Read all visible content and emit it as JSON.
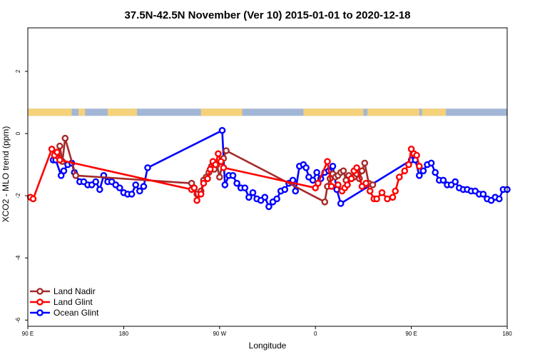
{
  "chart_data": {
    "type": "line",
    "title": "37.5N-42.5N November (Ver 10)   2015-01-01 to 2020-12-18",
    "xlabel": "Longitude",
    "ylabel": "XCO2 - MLO trend (ppm)",
    "xlim": [
      -90,
      270
    ],
    "ylim": [
      -6.2,
      3.4
    ],
    "x_ticks": [
      {
        "value": -90,
        "label": "90 E"
      },
      {
        "value": -18,
        "label": "180"
      },
      {
        "value": 54,
        "label": "90 W"
      },
      {
        "value": 126,
        "label": "0"
      },
      {
        "value": 198,
        "label": "90 E"
      },
      {
        "value": 270,
        "label": "180"
      }
    ],
    "y_ticks": [
      {
        "value": 2,
        "label": "2"
      },
      {
        "value": 0,
        "label": "0"
      },
      {
        "value": -2,
        "label": "-2"
      },
      {
        "value": -4,
        "label": "-4"
      },
      {
        "value": -6,
        "label": "-6"
      }
    ],
    "land_band": {
      "y_top": 0.8,
      "y_bottom": 0.57,
      "land_color": "#f5d27a",
      "ocean_color": "#a2b6d6"
    },
    "legend_position": "bottom-left",
    "series": [
      {
        "name": "Land Nadir",
        "color": "#a52a2a",
        "points": [
          [
            -68,
            -0.72
          ],
          [
            -66,
            -0.4
          ],
          [
            -64,
            -0.9
          ],
          [
            -62,
            -0.15
          ],
          [
            -54,
            -1.35
          ],
          [
            33,
            -1.6
          ],
          [
            35,
            -1.75
          ],
          [
            37,
            -1.95
          ],
          [
            40,
            -1.85
          ],
          [
            42,
            -1.5
          ],
          [
            44,
            -1.4
          ],
          [
            46,
            -1.25
          ],
          [
            48,
            -1.05
          ],
          [
            50,
            -1.15
          ],
          [
            52,
            -1.0
          ],
          [
            54,
            -1.4
          ],
          [
            57,
            -0.8
          ],
          [
            59,
            -0.55
          ],
          [
            133,
            -2.2
          ],
          [
            135,
            -1.7
          ],
          [
            137,
            -1.45
          ],
          [
            139,
            -1.3
          ],
          [
            141,
            -1.4
          ],
          [
            143,
            -1.35
          ],
          [
            145,
            -1.25
          ],
          [
            147,
            -1.2
          ],
          [
            149,
            -1.5
          ],
          [
            151,
            -1.35
          ],
          [
            153,
            -1.45
          ],
          [
            155,
            -1.4
          ],
          [
            157,
            -1.3
          ],
          [
            159,
            -1.45
          ],
          [
            161,
            -1.2
          ],
          [
            163,
            -0.95
          ],
          [
            166,
            -1.6
          ],
          [
            169,
            -1.65
          ]
        ],
        "marker": "circle"
      },
      {
        "name": "Land Glint",
        "color": "#ff0000",
        "points": [
          [
            -88,
            -2.05
          ],
          [
            -86,
            -2.1
          ],
          [
            -72,
            -0.5
          ],
          [
            -70,
            -0.7
          ],
          [
            -68,
            -0.6
          ],
          [
            -66,
            -0.85
          ],
          [
            33,
            -1.8
          ],
          [
            35,
            -1.75
          ],
          [
            37,
            -2.15
          ],
          [
            40,
            -1.95
          ],
          [
            42,
            -1.6
          ],
          [
            45,
            -1.45
          ],
          [
            47,
            -1.15
          ],
          [
            49,
            -0.9
          ],
          [
            51,
            -1.0
          ],
          [
            53,
            -0.65
          ],
          [
            55,
            -0.9
          ],
          [
            57,
            -1.1
          ],
          [
            126,
            -1.75
          ],
          [
            128,
            -1.6
          ],
          [
            135,
            -0.9
          ],
          [
            138,
            -1.7
          ],
          [
            143,
            -1.65
          ],
          [
            146,
            -1.85
          ],
          [
            148,
            -1.75
          ],
          [
            150,
            -1.65
          ],
          [
            153,
            -1.45
          ],
          [
            155,
            -1.2
          ],
          [
            157,
            -1.1
          ],
          [
            161,
            -1.7
          ],
          [
            164,
            -1.6
          ],
          [
            167,
            -1.85
          ],
          [
            170,
            -2.1
          ],
          [
            172,
            -2.1
          ],
          [
            176,
            -1.9
          ],
          [
            180,
            -2.1
          ],
          [
            184,
            -2.05
          ],
          [
            186,
            -1.85
          ],
          [
            189,
            -1.4
          ],
          [
            193,
            -1.2
          ],
          [
            196,
            -1.0
          ],
          [
            198,
            -0.5
          ],
          [
            200,
            -0.65
          ],
          [
            202,
            -0.7
          ],
          [
            204,
            -1.05
          ]
        ],
        "marker": "circle"
      },
      {
        "name": "Ocean Glint",
        "color": "#0000ff",
        "points": [
          [
            -71,
            -0.85
          ],
          [
            -69,
            -0.85
          ],
          [
            -65,
            -1.35
          ],
          [
            -63,
            -1.2
          ],
          [
            -60,
            -1.0
          ],
          [
            -57,
            -0.95
          ],
          [
            -55,
            -1.25
          ],
          [
            -51,
            -1.55
          ],
          [
            -48,
            -1.55
          ],
          [
            -45,
            -1.65
          ],
          [
            -42,
            -1.65
          ],
          [
            -39,
            -1.55
          ],
          [
            -36,
            -1.8
          ],
          [
            -33,
            -1.35
          ],
          [
            -30,
            -1.55
          ],
          [
            -27,
            -1.55
          ],
          [
            -24,
            -1.65
          ],
          [
            -21,
            -1.75
          ],
          [
            -18,
            -1.9
          ],
          [
            -15,
            -1.95
          ],
          [
            -12,
            -1.95
          ],
          [
            -9,
            -1.65
          ],
          [
            -6,
            -1.85
          ],
          [
            -3,
            -1.7
          ],
          [
            0,
            -1.1
          ],
          [
            56,
            0.1
          ],
          [
            58,
            -1.65
          ],
          [
            61,
            -1.35
          ],
          [
            64,
            -1.35
          ],
          [
            67,
            -1.6
          ],
          [
            70,
            -1.75
          ],
          [
            73,
            -1.75
          ],
          [
            76,
            -2.05
          ],
          [
            79,
            -1.9
          ],
          [
            82,
            -2.1
          ],
          [
            85,
            -2.15
          ],
          [
            88,
            -2.05
          ],
          [
            91,
            -2.35
          ],
          [
            94,
            -2.2
          ],
          [
            97,
            -2.1
          ],
          [
            100,
            -1.85
          ],
          [
            103,
            -1.8
          ],
          [
            106,
            -1.6
          ],
          [
            109,
            -1.5
          ],
          [
            111,
            -1.85
          ],
          [
            114,
            -1.05
          ],
          [
            117,
            -1.0
          ],
          [
            119,
            -1.1
          ],
          [
            121,
            -1.4
          ],
          [
            124,
            -1.5
          ],
          [
            127,
            -1.25
          ],
          [
            130,
            -1.45
          ],
          [
            133,
            -1.25
          ],
          [
            136,
            -1.2
          ],
          [
            139,
            -1.05
          ],
          [
            142,
            -1.8
          ],
          [
            145,
            -2.25
          ],
          [
            198,
            -0.85
          ],
          [
            201,
            -0.85
          ],
          [
            204,
            -1.35
          ],
          [
            207,
            -1.2
          ],
          [
            210,
            -1.0
          ],
          [
            213,
            -0.95
          ],
          [
            216,
            -1.25
          ],
          [
            219,
            -1.5
          ],
          [
            222,
            -1.5
          ],
          [
            225,
            -1.65
          ],
          [
            228,
            -1.65
          ],
          [
            231,
            -1.55
          ],
          [
            234,
            -1.75
          ],
          [
            237,
            -1.8
          ],
          [
            240,
            -1.8
          ],
          [
            243,
            -1.85
          ],
          [
            246,
            -1.85
          ],
          [
            249,
            -1.95
          ],
          [
            252,
            -1.95
          ],
          [
            255,
            -2.1
          ],
          [
            258,
            -2.15
          ],
          [
            261,
            -2.05
          ],
          [
            264,
            -2.1
          ],
          [
            267,
            -1.8
          ],
          [
            270,
            -1.8
          ]
        ],
        "marker": "circle"
      }
    ]
  }
}
